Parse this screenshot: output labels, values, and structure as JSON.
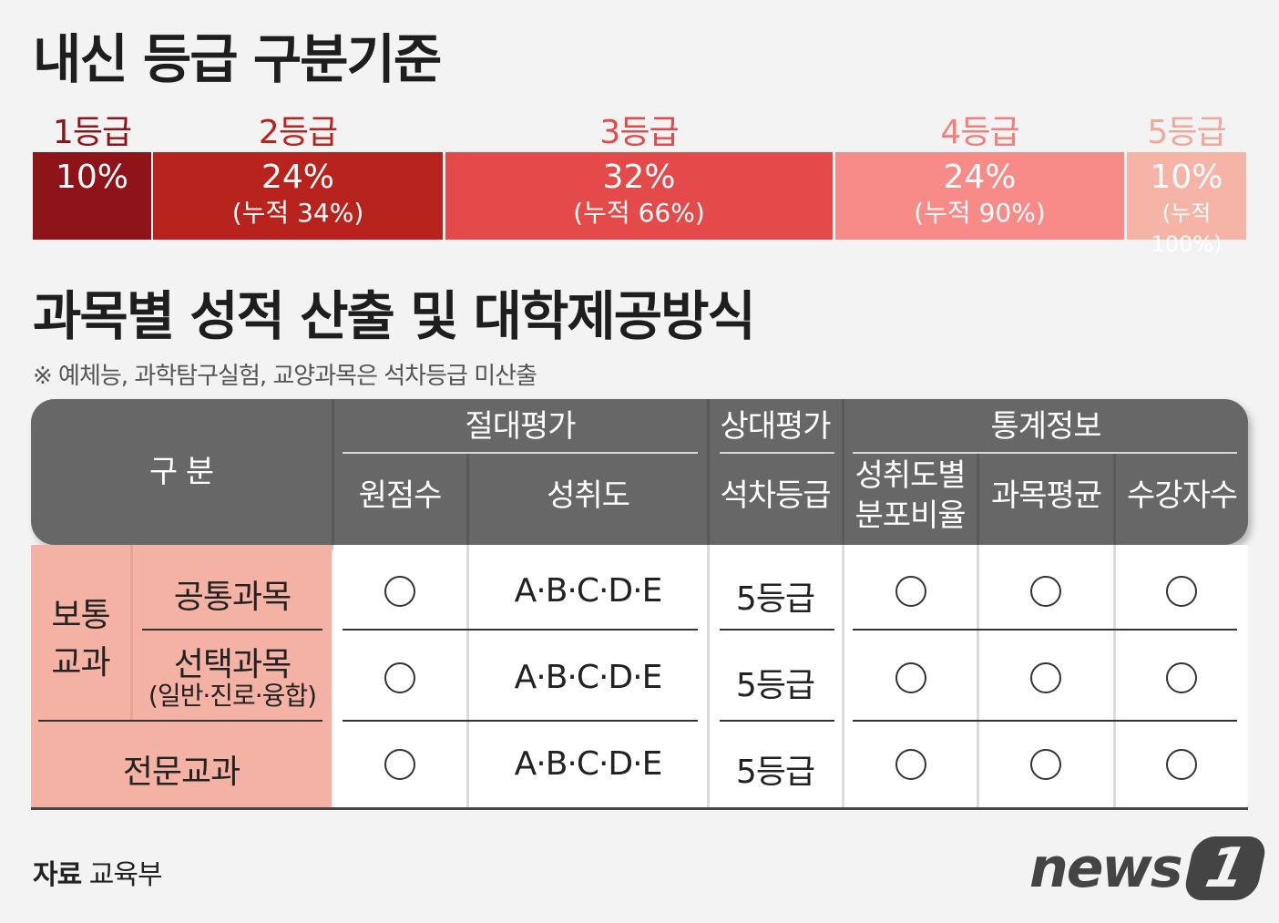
{
  "title_grades": "내신 등급 구분기준",
  "grades": [
    {
      "label": "1등급",
      "pct": "10%",
      "cum": "",
      "color": "#8e141a",
      "label_color": "#8e141a"
    },
    {
      "label": "2등급",
      "pct": "24%",
      "cum": "(누적 34%)",
      "color": "#b8231e",
      "label_color": "#b8231e"
    },
    {
      "label": "3등급",
      "pct": "32%",
      "cum": "(누적 66%)",
      "color": "#e44a49",
      "label_color": "#e44a49"
    },
    {
      "label": "4등급",
      "pct": "24%",
      "cum": "(누적 90%)",
      "color": "#f88a88",
      "label_color": "#f27f7d"
    },
    {
      "label": "5등급",
      "pct": "10%",
      "cum": "(누적 100%)",
      "color": "#f6b4a6",
      "label_color": "#f0a898"
    }
  ],
  "title_subjects": "과목별 성적 산출 및 대학제공방식",
  "note": "※ 예체능, 과학탐구실험, 교양과목은 석차등급 미산출",
  "table": {
    "header": {
      "category": "구 분",
      "group_abs": "절대평가",
      "group_rel": "상대평가",
      "group_stat": "통계정보",
      "col_raw": "원점수",
      "col_ach": "성취도",
      "col_rank": "석차등급",
      "col_dist_1": "성취도별",
      "col_dist_2": "분포비율",
      "col_avg": "과목평균",
      "col_count": "수강자수"
    },
    "general_label_1": "보통",
    "general_label_2": "교과",
    "rows": [
      {
        "name": "공통과목",
        "sub": "",
        "achievement": "A·B·C·D·E",
        "rank": "5등급"
      },
      {
        "name": "선택과목",
        "sub": "(일반·진로·융합)",
        "achievement": "A·B·C·D·E",
        "rank": "5등급"
      },
      {
        "name": "전문교과",
        "sub": "",
        "achievement": "A·B·C·D·E",
        "rank": "5등급"
      }
    ]
  },
  "source_label": "자료",
  "source_value": "교육부",
  "logo_text": "news",
  "logo_number": "1"
}
